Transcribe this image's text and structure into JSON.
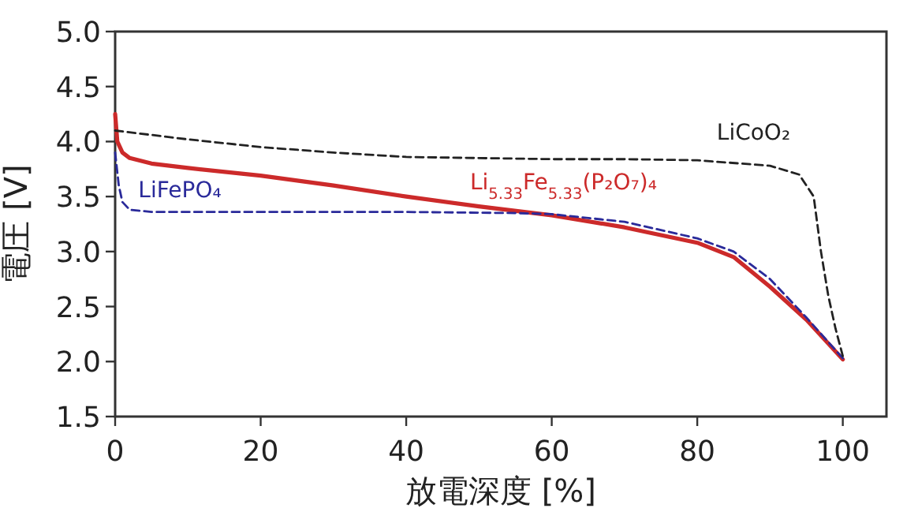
{
  "chart_data": {
    "type": "line",
    "xlabel": "放電深度 [%]",
    "ylabel": "電圧 [V]",
    "xlim": [
      0,
      106
    ],
    "ylim": [
      1.5,
      5.0
    ],
    "xticks": [
      0,
      20,
      40,
      60,
      80,
      100
    ],
    "yticks": [
      1.5,
      {
        "value": 2,
        "label": "2.0"
      },
      2.5,
      {
        "value": 3,
        "label": "3.0"
      },
      3.5,
      {
        "value": 4,
        "label": "4.0"
      },
      4.5,
      {
        "value": 5,
        "label": "5.0"
      }
    ],
    "grid": false,
    "marker": "none",
    "series": [
      {
        "name": "LiCoO₂",
        "color": "#222222",
        "line_style": "dashed",
        "x": [
          0,
          10,
          20,
          30,
          40,
          50,
          60,
          70,
          80,
          90,
          94,
          96,
          97,
          98,
          99,
          100
        ],
        "values": [
          4.1,
          4.02,
          3.95,
          3.9,
          3.86,
          3.85,
          3.84,
          3.84,
          3.83,
          3.78,
          3.7,
          3.5,
          3.0,
          2.6,
          2.3,
          2.05
        ]
      },
      {
        "name": "LiFePO₄",
        "color": "#2a2a9a",
        "line_style": "dashed",
        "x": [
          0,
          0.5,
          1,
          2,
          5,
          20,
          40,
          55,
          60,
          70,
          80,
          85,
          90,
          95,
          100
        ],
        "values": [
          3.9,
          3.6,
          3.45,
          3.38,
          3.36,
          3.36,
          3.36,
          3.35,
          3.34,
          3.27,
          3.12,
          3.0,
          2.75,
          2.4,
          2.03
        ]
      },
      {
        "name": "Li$_{5.33}$Fe$_{5.33}$(P₂O₇)₄",
        "color": "#cc2a2a",
        "line_style": "solid",
        "x": [
          0,
          0.3,
          1,
          2,
          5,
          10,
          20,
          30,
          40,
          50,
          60,
          70,
          80,
          85,
          90,
          95,
          100
        ],
        "values": [
          4.25,
          4.0,
          3.9,
          3.85,
          3.8,
          3.76,
          3.69,
          3.6,
          3.5,
          3.41,
          3.33,
          3.22,
          3.08,
          2.95,
          2.68,
          2.38,
          2.02
        ]
      }
    ]
  }
}
